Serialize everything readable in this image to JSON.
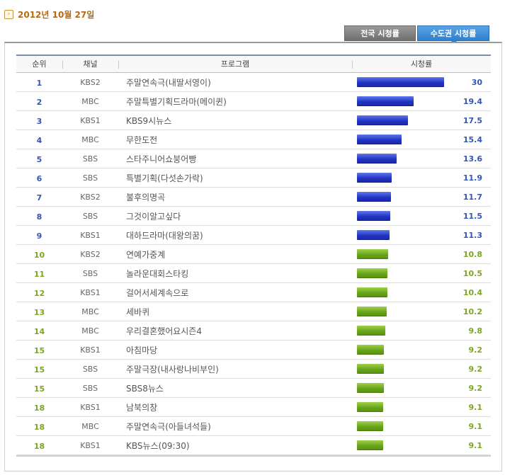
{
  "date": {
    "icon": "arrow-right-icon",
    "text": "2012년 10월 27일"
  },
  "tabs": [
    {
      "label": "전국 시청률",
      "active": false
    },
    {
      "label": "수도권 시청률",
      "active": true
    }
  ],
  "table": {
    "headers": {
      "rank": "순위",
      "channel": "채널",
      "program": "프로그램",
      "rating": "시청률"
    },
    "max_rating": 30,
    "colors": {
      "top": "#2233c4",
      "rest": "#68a51a"
    },
    "rows": [
      {
        "rank": "1",
        "channel": "KBS2",
        "program": "주말연속극(내딸서영이)",
        "rating": "30",
        "value": 30,
        "group": "top"
      },
      {
        "rank": "2",
        "channel": "MBC",
        "program": "주말특별기획드라마(메이퀸)",
        "rating": "19.4",
        "value": 19.4,
        "group": "top"
      },
      {
        "rank": "3",
        "channel": "KBS1",
        "program": "KBS9시뉴스",
        "rating": "17.5",
        "value": 17.5,
        "group": "top"
      },
      {
        "rank": "4",
        "channel": "MBC",
        "program": "무한도전",
        "rating": "15.4",
        "value": 15.4,
        "group": "top"
      },
      {
        "rank": "5",
        "channel": "SBS",
        "program": "스타주니어쇼붕어빵",
        "rating": "13.6",
        "value": 13.6,
        "group": "top"
      },
      {
        "rank": "6",
        "channel": "SBS",
        "program": "특별기획(다섯손가락)",
        "rating": "11.9",
        "value": 11.9,
        "group": "top"
      },
      {
        "rank": "7",
        "channel": "KBS2",
        "program": "불후의명곡",
        "rating": "11.7",
        "value": 11.7,
        "group": "top"
      },
      {
        "rank": "8",
        "channel": "SBS",
        "program": "그것이알고싶다",
        "rating": "11.5",
        "value": 11.5,
        "group": "top"
      },
      {
        "rank": "9",
        "channel": "KBS1",
        "program": "대하드라마(대왕의꿈)",
        "rating": "11.3",
        "value": 11.3,
        "group": "top"
      },
      {
        "rank": "10",
        "channel": "KBS2",
        "program": "연예가중계",
        "rating": "10.8",
        "value": 10.8,
        "group": "rest"
      },
      {
        "rank": "11",
        "channel": "SBS",
        "program": "놀라운대회스타킹",
        "rating": "10.5",
        "value": 10.5,
        "group": "rest"
      },
      {
        "rank": "12",
        "channel": "KBS1",
        "program": "걸어서세계속으로",
        "rating": "10.4",
        "value": 10.4,
        "group": "rest"
      },
      {
        "rank": "13",
        "channel": "MBC",
        "program": "세바퀴",
        "rating": "10.2",
        "value": 10.2,
        "group": "rest"
      },
      {
        "rank": "14",
        "channel": "MBC",
        "program": "우리결혼했어요시즌4",
        "rating": "9.8",
        "value": 9.8,
        "group": "rest"
      },
      {
        "rank": "15",
        "channel": "KBS1",
        "program": "아침마당",
        "rating": "9.2",
        "value": 9.2,
        "group": "rest"
      },
      {
        "rank": "15",
        "channel": "SBS",
        "program": "주말극장(내사랑나비부인)",
        "rating": "9.2",
        "value": 9.2,
        "group": "rest"
      },
      {
        "rank": "15",
        "channel": "SBS",
        "program": "SBS8뉴스",
        "rating": "9.2",
        "value": 9.2,
        "group": "rest"
      },
      {
        "rank": "18",
        "channel": "KBS1",
        "program": "남북의창",
        "rating": "9.1",
        "value": 9.1,
        "group": "rest"
      },
      {
        "rank": "18",
        "channel": "MBC",
        "program": "주말연속극(아들녀석들)",
        "rating": "9.1",
        "value": 9.1,
        "group": "rest"
      },
      {
        "rank": "18",
        "channel": "KBS1",
        "program": "KBS뉴스(09:30)",
        "rating": "9.1",
        "value": 9.1,
        "group": "rest"
      }
    ]
  }
}
